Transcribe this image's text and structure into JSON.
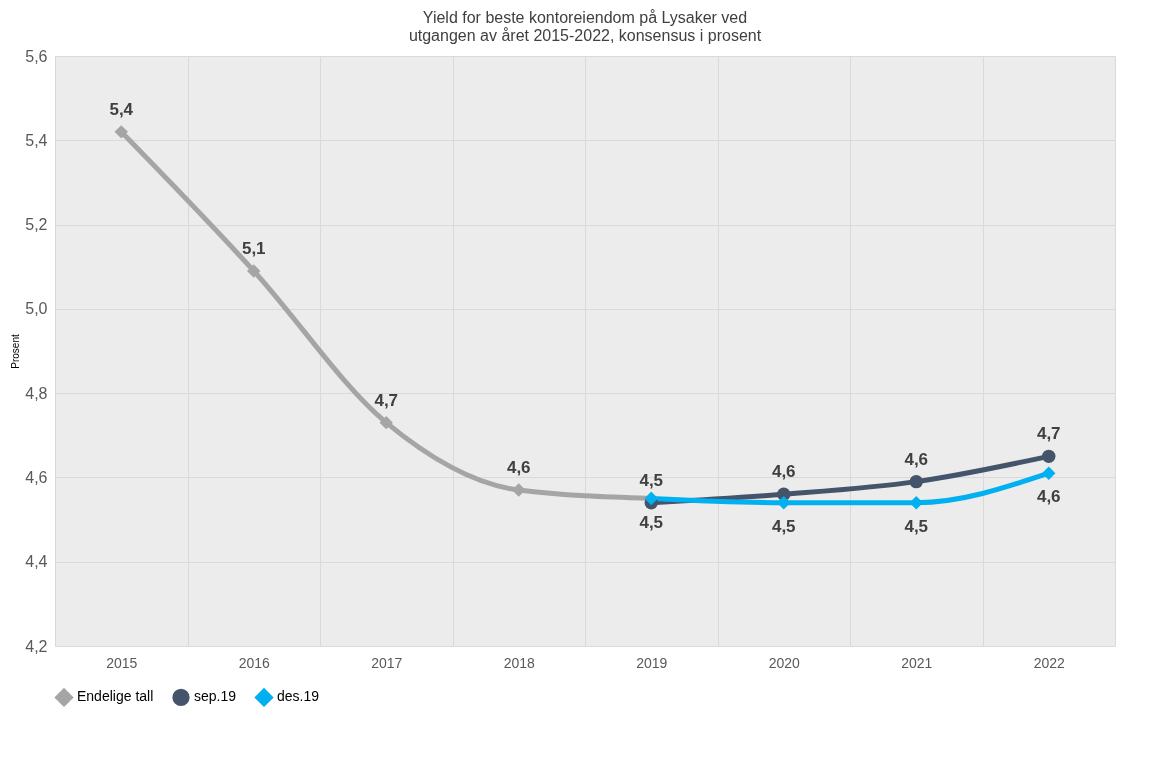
{
  "chart_data": {
    "type": "line",
    "title": "Yield for beste kontoreiendom på Lysaker ved\nutgangen av året 2015-2022, konsensus i prosent",
    "ylabel": "Prosent",
    "categories": [
      "2015",
      "2016",
      "2017",
      "2018",
      "2019",
      "2020",
      "2021",
      "2022"
    ],
    "series": [
      {
        "name": "Endelige tall",
        "color": "#a5a5a5",
        "marker": "diamond",
        "values": [
          5.42,
          5.09,
          4.73,
          4.57,
          4.55,
          null,
          null,
          null
        ],
        "value_labels": [
          "5,4",
          "5,1",
          "4,7",
          "4,6",
          null,
          null,
          null,
          null
        ]
      },
      {
        "name": "sep.19",
        "color": "#44546a",
        "marker": "circle",
        "values": [
          null,
          null,
          null,
          null,
          4.54,
          4.56,
          4.59,
          4.65
        ],
        "value_labels": [
          null,
          null,
          null,
          null,
          "4,5",
          "4,6",
          "4,6",
          "4,7"
        ]
      },
      {
        "name": "des.19",
        "color": "#00b0f0",
        "marker": "diamond",
        "values": [
          null,
          null,
          null,
          null,
          4.55,
          4.54,
          4.54,
          4.61
        ],
        "value_labels": [
          null,
          null,
          null,
          null,
          "4,5",
          "4,5",
          "4,5",
          "4,6"
        ]
      }
    ],
    "ylim": [
      4.2,
      5.6
    ],
    "yticks": [
      {
        "value": 4.2,
        "label": "4,2"
      },
      {
        "value": 4.4,
        "label": "4,4"
      },
      {
        "value": 4.6,
        "label": "4,6"
      },
      {
        "value": 4.8,
        "label": "4,8"
      },
      {
        "value": 5.0,
        "label": "5,0"
      },
      {
        "value": 5.2,
        "label": "5,2"
      },
      {
        "value": 5.4,
        "label": "5,4"
      },
      {
        "value": 5.6,
        "label": "5,6"
      }
    ],
    "grid": true,
    "legend": "bottom",
    "line_style": "solid"
  }
}
